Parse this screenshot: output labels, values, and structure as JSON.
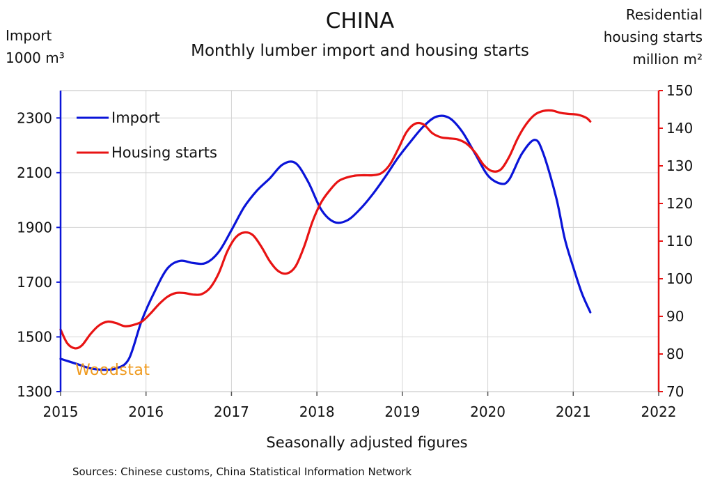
{
  "chart_data": {
    "type": "line",
    "title": "CHINA",
    "subtitle": "Monthly lumber import and housing starts",
    "xlabel": "Seasonally adjusted figures",
    "source": "Sources: Chinese customs, China Statistical Information Network",
    "watermark": "Woodstat",
    "ylabel_left": [
      "Import",
      "1000 m³"
    ],
    "ylabel_right": [
      "Residential",
      "housing starts",
      "million m²"
    ],
    "xlim": [
      2015,
      2022
    ],
    "x_ticks": [
      2015,
      2016,
      2017,
      2018,
      2019,
      2020,
      2021,
      2022
    ],
    "y_left_lim": [
      1300,
      2400
    ],
    "y_left_ticks": [
      1300,
      1500,
      1700,
      1900,
      2100,
      2300
    ],
    "y_right_lim": [
      70,
      150
    ],
    "y_right_ticks": [
      70,
      80,
      90,
      100,
      110,
      120,
      130,
      140,
      150
    ],
    "grid": true,
    "legend_position": "top-left",
    "series": [
      {
        "name": "Import",
        "color": "#0a14d8",
        "axis": "left",
        "points": [
          [
            2015.0,
            1420
          ],
          [
            2015.1,
            1410
          ],
          [
            2015.2,
            1400
          ],
          [
            2015.35,
            1385
          ],
          [
            2015.5,
            1380
          ],
          [
            2015.65,
            1385
          ],
          [
            2015.8,
            1420
          ],
          [
            2015.95,
            1560
          ],
          [
            2016.1,
            1665
          ],
          [
            2016.25,
            1750
          ],
          [
            2016.4,
            1778
          ],
          [
            2016.55,
            1770
          ],
          [
            2016.7,
            1770
          ],
          [
            2016.85,
            1810
          ],
          [
            2017.0,
            1890
          ],
          [
            2017.15,
            1975
          ],
          [
            2017.3,
            2035
          ],
          [
            2017.45,
            2080
          ],
          [
            2017.6,
            2130
          ],
          [
            2017.75,
            2135
          ],
          [
            2017.9,
            2065
          ],
          [
            2018.05,
            1965
          ],
          [
            2018.2,
            1920
          ],
          [
            2018.35,
            1925
          ],
          [
            2018.5,
            1965
          ],
          [
            2018.65,
            2020
          ],
          [
            2018.8,
            2085
          ],
          [
            2018.95,
            2155
          ],
          [
            2019.1,
            2215
          ],
          [
            2019.25,
            2270
          ],
          [
            2019.4,
            2305
          ],
          [
            2019.55,
            2300
          ],
          [
            2019.7,
            2250
          ],
          [
            2019.85,
            2170
          ],
          [
            2020.0,
            2090
          ],
          [
            2020.15,
            2060
          ],
          [
            2020.25,
            2075
          ],
          [
            2020.4,
            2170
          ],
          [
            2020.55,
            2220
          ],
          [
            2020.65,
            2170
          ],
          [
            2020.8,
            2010
          ],
          [
            2020.9,
            1860
          ],
          [
            2021.0,
            1755
          ],
          [
            2021.1,
            1660
          ],
          [
            2021.2,
            1590
          ]
        ]
      },
      {
        "name": "Housing starts",
        "color": "#e81313",
        "axis": "right",
        "points": [
          [
            2015.0,
            86.5
          ],
          [
            2015.08,
            82.8
          ],
          [
            2015.17,
            81.5
          ],
          [
            2015.25,
            82.3
          ],
          [
            2015.35,
            85.3
          ],
          [
            2015.45,
            87.6
          ],
          [
            2015.55,
            88.6
          ],
          [
            2015.65,
            88.2
          ],
          [
            2015.75,
            87.4
          ],
          [
            2015.85,
            87.7
          ],
          [
            2015.95,
            88.6
          ],
          [
            2016.05,
            90.7
          ],
          [
            2016.15,
            93.2
          ],
          [
            2016.25,
            95.2
          ],
          [
            2016.35,
            96.2
          ],
          [
            2016.45,
            96.2
          ],
          [
            2016.55,
            95.8
          ],
          [
            2016.65,
            95.9
          ],
          [
            2016.75,
            97.6
          ],
          [
            2016.85,
            101.4
          ],
          [
            2016.95,
            107.2
          ],
          [
            2017.05,
            111.0
          ],
          [
            2017.15,
            112.3
          ],
          [
            2017.25,
            111.6
          ],
          [
            2017.35,
            108.5
          ],
          [
            2017.45,
            104.6
          ],
          [
            2017.55,
            102.0
          ],
          [
            2017.65,
            101.4
          ],
          [
            2017.75,
            103.3
          ],
          [
            2017.85,
            108.5
          ],
          [
            2017.95,
            115.3
          ],
          [
            2018.05,
            120.3
          ],
          [
            2018.15,
            123.5
          ],
          [
            2018.25,
            125.9
          ],
          [
            2018.35,
            126.9
          ],
          [
            2018.45,
            127.4
          ],
          [
            2018.55,
            127.5
          ],
          [
            2018.65,
            127.5
          ],
          [
            2018.75,
            128.0
          ],
          [
            2018.85,
            130.2
          ],
          [
            2018.95,
            134.4
          ],
          [
            2019.05,
            139.0
          ],
          [
            2019.15,
            141.2
          ],
          [
            2019.25,
            141.0
          ],
          [
            2019.35,
            138.7
          ],
          [
            2019.45,
            137.6
          ],
          [
            2019.55,
            137.3
          ],
          [
            2019.65,
            137.0
          ],
          [
            2019.75,
            135.9
          ],
          [
            2019.85,
            133.6
          ],
          [
            2019.95,
            130.3
          ],
          [
            2020.05,
            128.6
          ],
          [
            2020.15,
            129.0
          ],
          [
            2020.25,
            132.4
          ],
          [
            2020.35,
            137.3
          ],
          [
            2020.45,
            141.1
          ],
          [
            2020.55,
            143.6
          ],
          [
            2020.65,
            144.6
          ],
          [
            2020.75,
            144.7
          ],
          [
            2020.85,
            144.1
          ],
          [
            2020.95,
            143.8
          ],
          [
            2021.05,
            143.6
          ],
          [
            2021.15,
            142.8
          ],
          [
            2021.2,
            141.8
          ]
        ]
      }
    ]
  }
}
